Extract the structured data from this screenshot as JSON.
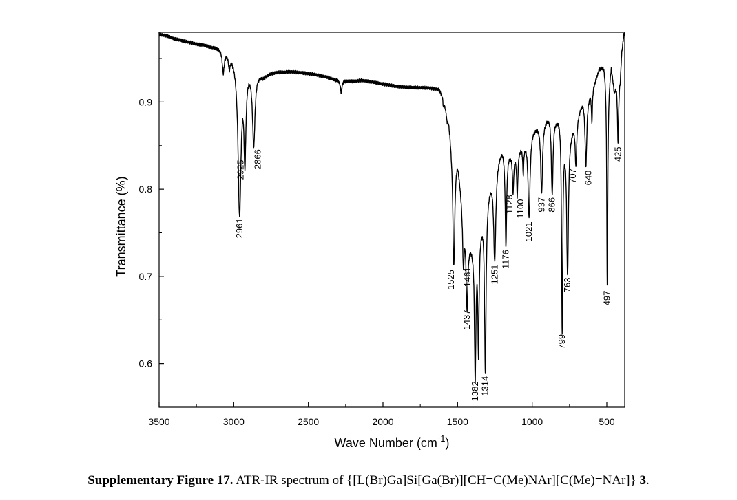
{
  "chart_data": {
    "type": "line",
    "xlabel": "Wave Number (cm",
    "xlabel_sup": "-1",
    "xlabel_end": ")",
    "ylabel": "Transmittance (%)",
    "xlim": [
      3500,
      380
    ],
    "ylim": [
      0.55,
      0.98
    ],
    "x_ticks": [
      3500,
      3000,
      2500,
      2000,
      1500,
      1000,
      500
    ],
    "x_tick_labels": [
      "3500",
      "3000",
      "2500",
      "2000",
      "1500",
      "1000",
      "500"
    ],
    "y_ticks": [
      0.6,
      0.7,
      0.8,
      0.9
    ],
    "y_tick_labels": [
      "0.6",
      "0.7",
      "0.8",
      "0.9"
    ],
    "baseline": [
      [
        3500,
        0.978
      ],
      [
        3450,
        0.976
      ],
      [
        3400,
        0.973
      ],
      [
        3350,
        0.971
      ],
      [
        3300,
        0.969
      ],
      [
        3250,
        0.967
      ],
      [
        3200,
        0.966
      ],
      [
        3150,
        0.964
      ],
      [
        3100,
        0.963
      ],
      [
        3070,
        0.962
      ],
      [
        2800,
        0.93
      ],
      [
        2750,
        0.934
      ],
      [
        2700,
        0.935
      ],
      [
        2600,
        0.935
      ],
      [
        2500,
        0.933
      ],
      [
        2400,
        0.93
      ],
      [
        2300,
        0.925
      ],
      [
        2200,
        0.924
      ],
      [
        2150,
        0.925
      ],
      [
        2100,
        0.924
      ],
      [
        2000,
        0.921
      ],
      [
        1900,
        0.918
      ],
      [
        1800,
        0.917
      ],
      [
        1700,
        0.917
      ],
      [
        1625,
        0.916
      ],
      [
        1600,
        0.91
      ],
      [
        1560,
        0.885
      ],
      [
        1542,
        0.86
      ],
      [
        1500,
        0.84
      ],
      [
        1470,
        0.79
      ],
      [
        1430,
        0.745
      ],
      [
        1400,
        0.74
      ],
      [
        1340,
        0.765
      ],
      [
        1290,
        0.805
      ],
      [
        1245,
        0.835
      ],
      [
        1200,
        0.85
      ],
      [
        1160,
        0.845
      ],
      [
        1120,
        0.842
      ],
      [
        1080,
        0.85
      ],
      [
        1050,
        0.855
      ],
      [
        1000,
        0.87
      ],
      [
        960,
        0.875
      ],
      [
        920,
        0.88
      ],
      [
        880,
        0.89
      ],
      [
        840,
        0.885
      ],
      [
        810,
        0.89
      ],
      [
        780,
        0.865
      ],
      [
        740,
        0.87
      ],
      [
        700,
        0.885
      ],
      [
        660,
        0.905
      ],
      [
        620,
        0.91
      ],
      [
        580,
        0.925
      ],
      [
        550,
        0.94
      ],
      [
        520,
        0.945
      ],
      [
        490,
        0.92
      ],
      [
        470,
        0.945
      ],
      [
        450,
        0.915
      ],
      [
        430,
        0.93
      ],
      [
        410,
        0.93
      ],
      [
        400,
        0.96
      ],
      [
        385,
        0.98
      ]
    ],
    "peaks": [
      {
        "x": 3070,
        "min": 0.936,
        "w": 8,
        "label": ""
      },
      {
        "x": 3030,
        "min": 0.943,
        "w": 6,
        "label": ""
      },
      {
        "x": 2961,
        "min": 0.773,
        "w": 12,
        "label": "2961"
      },
      {
        "x": 2925,
        "min": 0.84,
        "w": 8,
        "label": "2925"
      },
      {
        "x": 2866,
        "min": 0.852,
        "w": 10,
        "label": "2866"
      },
      {
        "x": 2280,
        "min": 0.911,
        "w": 6,
        "label": ""
      },
      {
        "x": 1595,
        "min": 0.898,
        "w": 5,
        "label": ""
      },
      {
        "x": 1570,
        "min": 0.882,
        "w": 6,
        "label": ""
      },
      {
        "x": 1525,
        "min": 0.714,
        "w": 8,
        "label": "1525"
      },
      {
        "x": 1461,
        "min": 0.717,
        "w": 6,
        "label": "1461"
      },
      {
        "x": 1437,
        "min": 0.668,
        "w": 7,
        "label": "1437"
      },
      {
        "x": 1382,
        "min": 0.586,
        "w": 6,
        "label": "1382"
      },
      {
        "x": 1360,
        "min": 0.62,
        "w": 5,
        "label": ""
      },
      {
        "x": 1314,
        "min": 0.592,
        "w": 6,
        "label": "1314"
      },
      {
        "x": 1251,
        "min": 0.72,
        "w": 9,
        "label": "1251"
      },
      {
        "x": 1176,
        "min": 0.737,
        "w": 6,
        "label": "1176"
      },
      {
        "x": 1128,
        "min": 0.8,
        "w": 5,
        "label": "1128"
      },
      {
        "x": 1100,
        "min": 0.795,
        "w": 5,
        "label": "1100"
      },
      {
        "x": 1060,
        "min": 0.822,
        "w": 4,
        "label": ""
      },
      {
        "x": 1021,
        "min": 0.769,
        "w": 8,
        "label": "1021"
      },
      {
        "x": 937,
        "min": 0.797,
        "w": 7,
        "label": "937"
      },
      {
        "x": 866,
        "min": 0.797,
        "w": 7,
        "label": "866"
      },
      {
        "x": 799,
        "min": 0.64,
        "w": 5,
        "label": "799"
      },
      {
        "x": 763,
        "min": 0.705,
        "w": 7,
        "label": "763"
      },
      {
        "x": 707,
        "min": 0.83,
        "w": 6,
        "label": "707"
      },
      {
        "x": 640,
        "min": 0.828,
        "w": 7,
        "label": "640"
      },
      {
        "x": 600,
        "min": 0.88,
        "w": 4,
        "label": ""
      },
      {
        "x": 497,
        "min": 0.69,
        "w": 4,
        "label": "497"
      },
      {
        "x": 425,
        "min": 0.855,
        "w": 5,
        "label": "425"
      }
    ]
  },
  "caption": {
    "bold": "Supplementary Figure 17.",
    "text": " ATR-IR spectrum of {[L(Br)Ga]Si[Ga(Br)][CH=C(Me)NAr][C(Me)=NAr]} ",
    "compound": "3",
    "end": "."
  }
}
